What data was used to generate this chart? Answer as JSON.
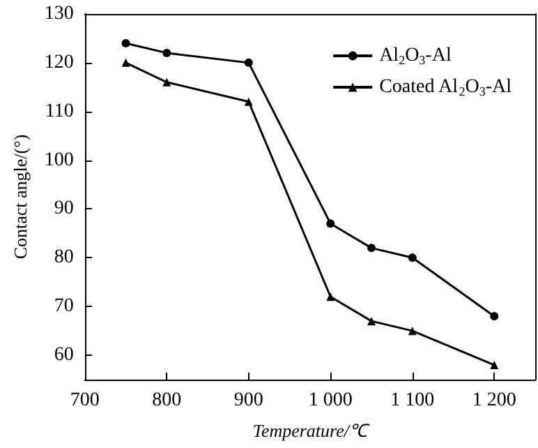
{
  "chart_data": {
    "type": "line",
    "xlabel": "Temperature/℃",
    "ylabel": "Contact angle/(°)",
    "x": [
      750,
      800,
      900,
      1000,
      1050,
      1100,
      1200
    ],
    "series": [
      {
        "name": "Al$_{2}$O$_{3}$-Al",
        "color": "#000000",
        "marker": "circle",
        "values": [
          124,
          122,
          120,
          87,
          82,
          80,
          68
        ]
      },
      {
        "name": "Coated Al$_{2}$O$_{3}$-Al",
        "color": "#000000",
        "marker": "triangle",
        "values": [
          120,
          116,
          112,
          72,
          67,
          65,
          58
        ]
      }
    ],
    "xlim": [
      700,
      1250
    ],
    "xticks": [
      700,
      800,
      900,
      {
        "value": 1000,
        "label": "1 000"
      },
      {
        "value": 1100,
        "label": "1 100"
      },
      {
        "value": 1200,
        "label": "1 200"
      }
    ],
    "ylim": [
      55,
      130
    ],
    "yticks": [
      60,
      70,
      80,
      90,
      100,
      110,
      120,
      130
    ],
    "grid": false,
    "legend": "top right",
    "line_style": "solid"
  }
}
